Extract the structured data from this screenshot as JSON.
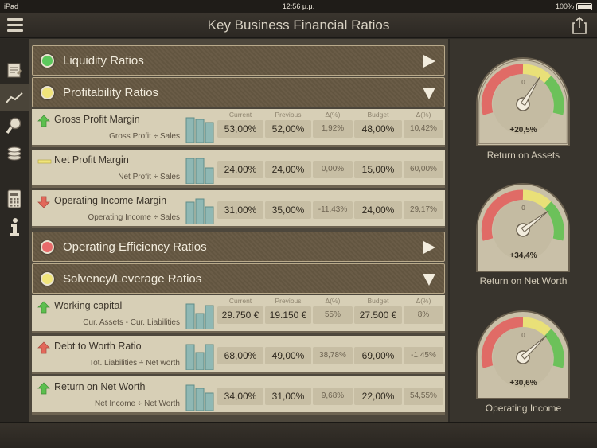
{
  "status": {
    "carrier": "iPad",
    "time": "12:56 μ.μ.",
    "battery": "100%"
  },
  "nav": {
    "title": "Key Business Financial Ratios"
  },
  "rail": {
    "items": [
      {
        "icon": "report-icon"
      },
      {
        "icon": "trend-chart-icon",
        "active": true
      },
      {
        "icon": "magnifier-icon"
      },
      {
        "icon": "coins-icon"
      },
      {
        "icon": "calculator-icon"
      },
      {
        "icon": "info-icon"
      }
    ]
  },
  "columns": {
    "current": "Current",
    "previous": "Previous",
    "delta": "Δ(%)",
    "budget": "Budget",
    "budget_delta": "Δ(%)"
  },
  "sections": [
    {
      "label": "Liquidity Ratios",
      "status_color": "#5cc85c",
      "expanded": false
    },
    {
      "label": "Profitability Ratios",
      "status_color": "#f0e47a",
      "expanded": true,
      "rows": [
        {
          "name": "Gross Profit Margin",
          "formula": "Gross Profit ÷ Sales",
          "trend": "up",
          "current": "53,00%",
          "previous": "52,00%",
          "delta": "1,92%",
          "budget": "48,00%",
          "budget_delta": "10,42%"
        },
        {
          "name": "Net Profit Margin",
          "formula": "Net Profit ÷ Sales",
          "trend": "flat",
          "current": "24,00%",
          "previous": "24,00%",
          "delta": "0,00%",
          "budget": "15,00%",
          "budget_delta": "60,00%"
        },
        {
          "name": "Operating Income Margin",
          "formula": "Operating Income ÷ Sales",
          "trend": "down",
          "current": "31,00%",
          "previous": "35,00%",
          "delta": "-11,43%",
          "budget": "24,00%",
          "budget_delta": "29,17%"
        }
      ]
    },
    {
      "label": "Operating Efficiency Ratios",
      "status_color": "#e86a6a",
      "expanded": false
    },
    {
      "label": "Solvency/Leverage Ratios",
      "status_color": "#f0e47a",
      "expanded": true,
      "rows": [
        {
          "name": "Working capital",
          "formula": "Cur. Assets - Cur. Liabilities",
          "trend": "up",
          "current": "29.750 €",
          "previous": "19.150 €",
          "delta": "55%",
          "budget": "27.500 €",
          "budget_delta": "8%"
        },
        {
          "name": "Debt to Worth Ratio",
          "formula": "Tot. Liabilities ÷ Net worth",
          "trend": "up-red",
          "current": "68,00%",
          "previous": "49,00%",
          "delta": "38,78%",
          "budget": "69,00%",
          "budget_delta": "-1,45%"
        },
        {
          "name": "Return on Net Worth",
          "formula": "Net Income ÷ Net Worth",
          "trend": "up",
          "current": "34,00%",
          "previous": "31,00%",
          "delta": "9,68%",
          "budget": "22,00%",
          "budget_delta": "54,55%"
        }
      ]
    }
  ],
  "gauges": [
    {
      "label": "Return on Assets",
      "value": "+20,5%",
      "zero": "0",
      "needle_value": 20.5
    },
    {
      "label": "Return on Net Worth",
      "value": "+34,4%",
      "zero": "0",
      "needle_value": 34.4
    },
    {
      "label": "Operating Income",
      "value": "+30,6%",
      "zero": "0",
      "needle_value": 30.6
    }
  ],
  "colors": {
    "up": "#5cbf4e",
    "down": "#e2685a",
    "flat": "#f0e47a",
    "bar": "#8fb8b4"
  }
}
